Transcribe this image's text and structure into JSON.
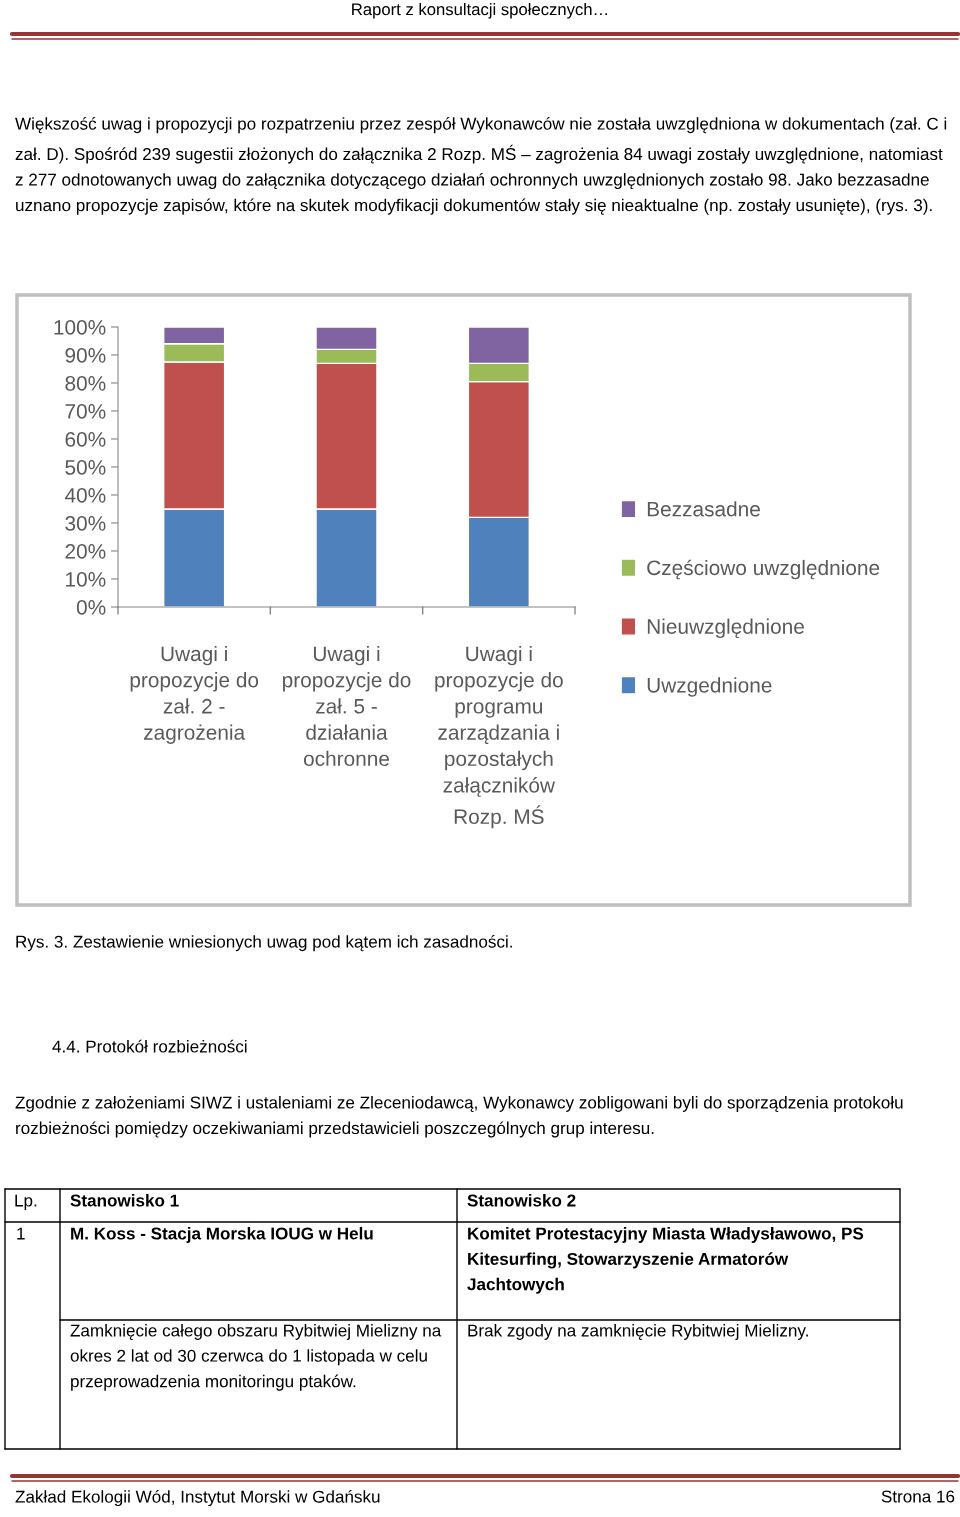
{
  "chart_data": {
    "type": "bar",
    "stacked": true,
    "categories": [
      "Uwagi i propozycje do zał. 2 - zagrożenia",
      "Uwagi i propozycje do zał. 5 - działania ochronne",
      "Uwagi i propozycje do programu zarządzania i pozostałych załączników Rozp. MŚ"
    ],
    "series": [
      {
        "name": "Uwzgednione",
        "color": "#4f81bd",
        "values": [
          35,
          35,
          32
        ]
      },
      {
        "name": "Nieuwzględnione",
        "color": "#c0504d",
        "values": [
          52.5,
          52,
          48.5
        ]
      },
      {
        "name": "Częściowo uwzględnione",
        "color": "#9bbb59",
        "values": [
          6.5,
          5,
          6.5
        ]
      },
      {
        "name": "Bezzasadne",
        "color": "#8064a2",
        "values": [
          6,
          8,
          13
        ]
      }
    ],
    "ylim": [
      0,
      100
    ],
    "yticks": [
      {
        "value": 0,
        "label": "0%"
      },
      {
        "value": 10,
        "label": "10%"
      },
      {
        "value": 20,
        "label": "20%"
      },
      {
        "value": 30,
        "label": "30%"
      },
      {
        "value": 40,
        "label": "40%"
      },
      {
        "value": 50,
        "label": "50%"
      },
      {
        "value": 60,
        "label": "60%"
      },
      {
        "value": 70,
        "label": "70%"
      },
      {
        "value": 80,
        "label": "80%"
      },
      {
        "value": 90,
        "label": "90%"
      },
      {
        "value": 100,
        "label": "100%"
      }
    ],
    "grid": false,
    "legend": "right",
    "annotations": [
      "Raport z konsultacji społecznych…",
      "Większość uwag i propozycji po rozpatrzeniu przez zespół Wykonawców nie została uwzględniona w dokumentach (zał. C i zał. D). Spośród 239 sugestii złożonych do załącznika 2 Rozp. MŚ – zagrożenia 84 uwagi zostały uwzględnione, natomiast z 277 odnotowanych uwag do załącznika dotyczącego działań ochronnych uwzględnionych zostało 98. Jako bezzasadne uznano propozycje zapisów, które na skutek modyfikacji dokumentów stały się nieaktualne (np. zostały usunięte), (rys. 3).",
      "Rys. 3. Zestawienie wniesionych uwag pod kątem ich zasadności.",
      "4.4. Protokół rozbieżności",
      "Zgodnie z założeniami SIWZ i ustaleniami ze Zleceniodawcą, Wykonawcy zobligowani byli do sporządzenia protokołu rozbieżności pomiędzy oczekiwaniami przedstawicieli poszczególnych grup interesu.",
      "Lp.",
      "Stanowisko 1",
      "Stanowisko 2",
      "1",
      "M. Koss - Stacja Morska IOUG w Helu",
      "Komitet Protestacyjny Miasta Władysławowo, PS Kitesurfing, Stowarzyszenie Armatorów Jachtowych",
      "Zamknięcie całego obszaru Rybitwiej Mielizny na okres 2 lat od 30 czerwca do 1 listopada w celu przeprowadzenia monitoringu ptaków.",
      "Brak zgody na zamknięcie Rybitwiej Mielizny.",
      "Zakład Ekologii Wód, Instytut Morski w Gdańsku",
      "Strona 16"
    ]
  }
}
